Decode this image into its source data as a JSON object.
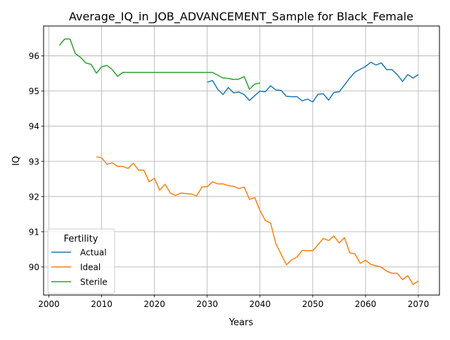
{
  "chart_data": {
    "type": "line",
    "title": "Average_IQ_in_JOB_ADVANCEMENT_Sample for Black_Female",
    "xlabel": "Years",
    "ylabel": "IQ",
    "xlim": [
      1999,
      2074
    ],
    "ylim": [
      89.2,
      96.85
    ],
    "xticks": [
      2000,
      2010,
      2020,
      2030,
      2040,
      2050,
      2060,
      2070
    ],
    "yticks": [
      90,
      91,
      92,
      93,
      94,
      95,
      96
    ],
    "grid": true,
    "legend": {
      "title": "Fertility",
      "placement": "lower left"
    },
    "series": [
      {
        "name": "Actual",
        "color": "#1f77b4",
        "x": [
          2030,
          2031,
          2032,
          2033,
          2034,
          2035,
          2036,
          2037,
          2038,
          2039,
          2040,
          2041,
          2042,
          2043,
          2044,
          2045,
          2046,
          2047,
          2048,
          2049,
          2050,
          2051,
          2052,
          2053,
          2054,
          2055,
          2056,
          2057,
          2058,
          2059,
          2060,
          2061,
          2062,
          2063,
          2064,
          2065,
          2066,
          2067,
          2068,
          2069,
          2070
        ],
        "y": [
          95.25,
          95.3,
          95.05,
          94.9,
          95.1,
          94.95,
          94.97,
          94.9,
          94.73,
          94.87,
          95.0,
          94.98,
          95.15,
          95.03,
          95.02,
          94.85,
          94.84,
          94.84,
          94.72,
          94.77,
          94.69,
          94.91,
          94.92,
          94.74,
          94.96,
          94.98,
          95.17,
          95.37,
          95.54,
          95.62,
          95.7,
          95.82,
          95.74,
          95.8,
          95.61,
          95.61,
          95.47,
          95.27,
          95.47,
          95.37,
          95.47
        ]
      },
      {
        "name": "Ideal",
        "color": "#ff7f0e",
        "x": [
          2009,
          2010,
          2011,
          2012,
          2013,
          2014,
          2015,
          2016,
          2017,
          2018,
          2019,
          2020,
          2021,
          2022,
          2023,
          2024,
          2025,
          2026,
          2027,
          2028,
          2029,
          2030,
          2031,
          2032,
          2033,
          2034,
          2035,
          2036,
          2037,
          2038,
          2039,
          2040,
          2041,
          2042,
          2043,
          2044,
          2045,
          2046,
          2047,
          2048,
          2049,
          2050,
          2051,
          2052,
          2053,
          2054,
          2055,
          2056,
          2057,
          2058,
          2059,
          2060,
          2061,
          2062,
          2063,
          2064,
          2065,
          2066,
          2067,
          2068,
          2069,
          2070
        ],
        "y": [
          93.13,
          93.1,
          92.92,
          92.96,
          92.86,
          92.86,
          92.8,
          92.95,
          92.75,
          92.75,
          92.42,
          92.52,
          92.18,
          92.35,
          92.1,
          92.03,
          92.1,
          92.08,
          92.07,
          92.02,
          92.27,
          92.28,
          92.42,
          92.36,
          92.36,
          92.31,
          92.29,
          92.23,
          92.27,
          91.92,
          91.97,
          91.6,
          91.32,
          91.25,
          90.66,
          90.36,
          90.06,
          90.2,
          90.28,
          90.47,
          90.46,
          90.46,
          90.63,
          90.81,
          90.75,
          90.88,
          90.68,
          90.83,
          90.4,
          90.37,
          90.1,
          90.19,
          90.07,
          90.03,
          89.99,
          89.88,
          89.82,
          89.82,
          89.64,
          89.75,
          89.5,
          89.6
        ]
      },
      {
        "name": "Sterile",
        "color": "#2ca02c",
        "x": [
          2002,
          2003,
          2004,
          2005,
          2006,
          2007,
          2008,
          2009,
          2010,
          2011,
          2012,
          2013,
          2014,
          2015,
          2016,
          2017,
          2018,
          2019,
          2020,
          2021,
          2022,
          2023,
          2024,
          2025,
          2026,
          2027,
          2028,
          2029,
          2030,
          2031,
          2032,
          2033,
          2034,
          2035,
          2036,
          2037,
          2038,
          2039,
          2040
        ],
        "y": [
          96.3,
          96.48,
          96.48,
          96.07,
          95.96,
          95.8,
          95.76,
          95.51,
          95.69,
          95.73,
          95.61,
          95.42,
          95.53,
          95.53,
          95.53,
          95.53,
          95.53,
          95.53,
          95.53,
          95.53,
          95.53,
          95.53,
          95.53,
          95.53,
          95.53,
          95.53,
          95.53,
          95.53,
          95.53,
          95.53,
          95.45,
          95.37,
          95.36,
          95.33,
          95.34,
          95.41,
          95.05,
          95.2,
          95.23
        ]
      }
    ]
  }
}
